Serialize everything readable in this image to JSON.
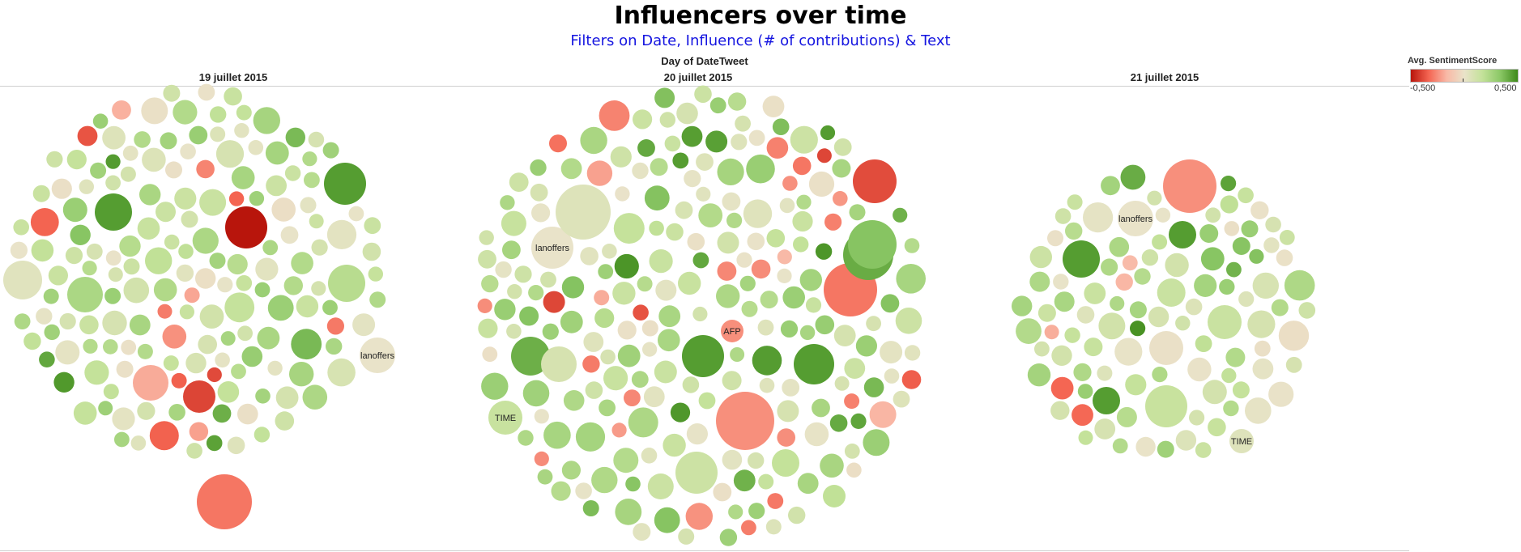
{
  "header": {
    "title": "Influencers over time",
    "subtitle": "Filters on Date, Influence (# of contributions) & Text",
    "column_header": "Day of DateTweet"
  },
  "legend": {
    "title": "Avg. SentimentScore",
    "min_label": "-0,500",
    "max_label": "0,500",
    "colors": [
      "#b8150c",
      "#f46552",
      "#f9b8a6",
      "#e9e3c9",
      "#c4e29a",
      "#8cc867",
      "#3e8a1a"
    ]
  },
  "chart_data": {
    "type": "packed-bubble",
    "title": "Influencers over time",
    "subtitle": "Filters on Date, Influence (# of contributions) & Text",
    "xlabel": "Day of DateTweet",
    "size_measure_caption": "Influence (# of contributions)",
    "color_measure": "Avg. SentimentScore",
    "color_range": [
      -0.5,
      0.5
    ],
    "panels": [
      {
        "date": "19 juillet 2015",
        "bubble_count": 200,
        "labeled_bubbles": [
          {
            "label": "lanoffers",
            "sentiment": 0.0
          }
        ],
        "notable_bubbles_sentiment": [
          -0.5,
          -0.4,
          -0.3,
          0.45,
          0.45
        ]
      },
      {
        "date": "20 juillet 2015",
        "bubble_count": 250,
        "labeled_bubbles": [
          {
            "label": "lanoffers",
            "sentiment": 0.0
          },
          {
            "label": "AFP",
            "sentiment": -0.25
          },
          {
            "label": "TIME",
            "sentiment": 0.15
          }
        ],
        "notable_bubbles_sentiment": [
          -0.3,
          -0.25,
          0.45,
          0.45,
          0.4
        ]
      },
      {
        "date": "21 juillet 2015",
        "bubble_count": 110,
        "labeled_bubbles": [
          {
            "label": "lanoffers",
            "sentiment": 0.0
          },
          {
            "label": "TIME",
            "sentiment": 0.05
          }
        ],
        "notable_bubbles_sentiment": [
          -0.25,
          0.45,
          0.45,
          0.45
        ]
      }
    ]
  }
}
